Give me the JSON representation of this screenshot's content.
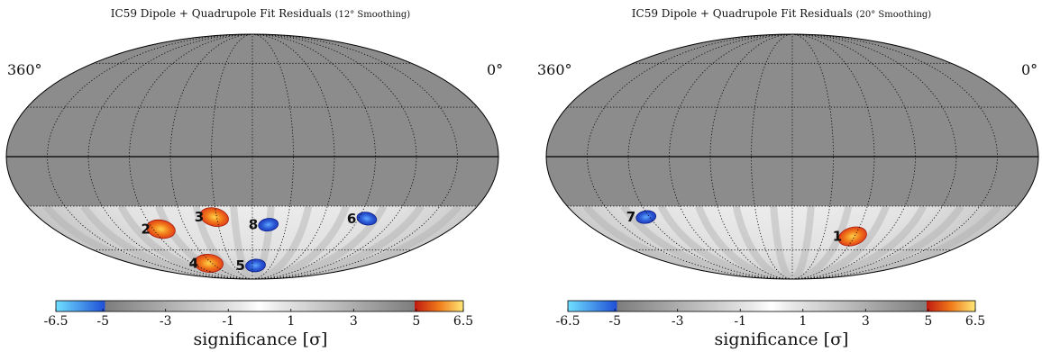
{
  "colors": {
    "masked_region": "#8c8c8c",
    "significance_low": "#ffffff",
    "significance_mid": "#b0b0b0",
    "negative_cold": "#1f3fbf",
    "positive_hot": "#e2401a",
    "outline": "#000000"
  },
  "chart_data": [
    {
      "type": "heatmap",
      "projection": "mollweide",
      "title": "IC59 Dipole + Quadrupole Fit Residuals",
      "smoothing_label": "(12° Smoothing)",
      "lon_label_left": "360°",
      "lon_label_right": "0°",
      "grid": true,
      "masked_above_dec": -30,
      "colorbar": {
        "label": "significance [σ]",
        "range": [
          -6.5,
          6.5
        ],
        "ticks": [
          "-6.5",
          "-5",
          "-3",
          "-1",
          "1",
          "3",
          "5",
          "6.5"
        ]
      },
      "regions": [
        {
          "label": "2",
          "ra": 263,
          "dec": -45,
          "sign": "positive"
        },
        {
          "label": "3",
          "ra": 212,
          "dec": -37,
          "sign": "positive"
        },
        {
          "label": "4",
          "ra": 245,
          "dec": -71,
          "sign": "positive"
        },
        {
          "label": "5",
          "ra": 175,
          "dec": -73,
          "sign": "negative"
        },
        {
          "label": "6",
          "ra": 83,
          "dec": -38,
          "sign": "negative"
        },
        {
          "label": "8",
          "ra": 166,
          "dec": -42,
          "sign": "negative"
        }
      ]
    },
    {
      "type": "heatmap",
      "projection": "mollweide",
      "title": "IC59 Dipole + Quadrupole Fit Residuals",
      "smoothing_label": "(20° Smoothing)",
      "lon_label_left": "360°",
      "lon_label_right": "0°",
      "grid": true,
      "masked_above_dec": -30,
      "colorbar": {
        "label": "significance [σ]",
        "range": [
          -6.5,
          6.5
        ],
        "ticks": [
          "-6.5",
          "-5",
          "-3",
          "-1",
          "1",
          "3",
          "5",
          "6.5"
        ]
      },
      "regions": [
        {
          "label": "1",
          "ra": 122,
          "dec": -50,
          "sign": "positive"
        },
        {
          "label": "7",
          "ra": 303,
          "dec": -37,
          "sign": "negative"
        }
      ]
    }
  ]
}
